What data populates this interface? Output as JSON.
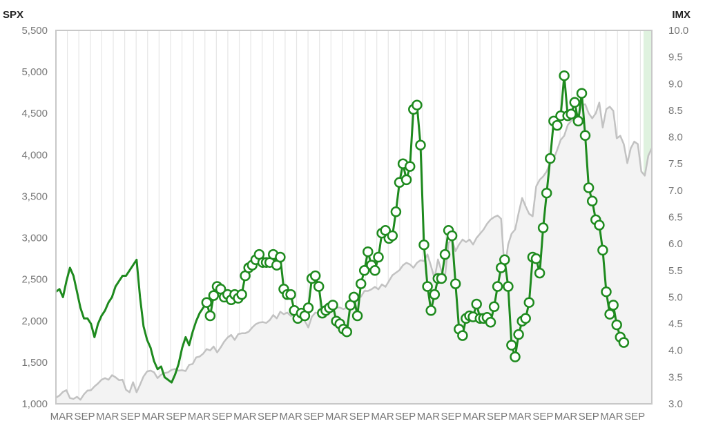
{
  "chart_data": {
    "type": "line",
    "title": "",
    "left_axis": {
      "label": "SPX",
      "ylim": [
        1000,
        5500
      ],
      "ticks": [
        1000,
        1500,
        2000,
        2500,
        3000,
        3500,
        4000,
        4500,
        5000,
        5500
      ],
      "tick_labels": [
        "1,000",
        "1,500",
        "2,000",
        "2,500",
        "3,000",
        "3,500",
        "4,000",
        "4,500",
        "5,000",
        "5,500"
      ]
    },
    "right_axis": {
      "label": "IMX",
      "ylim": [
        3.0,
        10.0
      ],
      "ticks": [
        3.0,
        3.5,
        4.0,
        4.5,
        5.0,
        5.5,
        6.0,
        6.5,
        7.0,
        7.5,
        8.0,
        8.5,
        9.0,
        9.5,
        10.0
      ],
      "tick_labels": [
        "3.0",
        "3.5",
        "4.0",
        "4.5",
        "5.0",
        "5.5",
        "6.0",
        "6.5",
        "7.0",
        "7.5",
        "8.0",
        "8.5",
        "9.0",
        "9.5",
        "10.0"
      ]
    },
    "x_tick_labels": [
      "MAR",
      "SEP",
      "MAR",
      "SEP",
      "MAR",
      "SEP",
      "MAR",
      "SEP",
      "MAR",
      "SEP",
      "MAR",
      "SEP",
      "MAR",
      "SEP",
      "MAR",
      "SEP",
      "MAR",
      "SEP",
      "MAR",
      "SEP",
      "MAR",
      "SEP",
      "MAR",
      "SEP",
      "MAR",
      "SEP"
    ],
    "grid": "vertical",
    "colors": {
      "spx_line": "#c2c2c2",
      "spx_fill": "#f3f3f3",
      "imx_line": "#1e8a1e",
      "marker_fill": "#ffffff",
      "gridline": "#e6e6e6",
      "axis": "#c8c8c8",
      "highlight": "#dff2df"
    },
    "series": [
      {
        "name": "SPX",
        "axis": "left",
        "values": [
          1075,
          1100,
          1145,
          1165,
          1070,
          1060,
          1085,
          1050,
          1115,
          1160,
          1165,
          1210,
          1245,
          1290,
          1310,
          1290,
          1345,
          1320,
          1285,
          1290,
          1170,
          1140,
          1260,
          1140,
          1230,
          1330,
          1390,
          1400,
          1380,
          1310,
          1350,
          1370,
          1380,
          1410,
          1420,
          1400,
          1405,
          1395,
          1470,
          1480,
          1560,
          1570,
          1605,
          1660,
          1645,
          1690,
          1620,
          1680,
          1750,
          1800,
          1830,
          1770,
          1840,
          1850,
          1850,
          1870,
          1920,
          1960,
          1980,
          1985,
          1975,
          2010,
          2070,
          2030,
          2110,
          2080,
          2100,
          2060,
          2070,
          1990,
          2050,
          2000,
          1920,
          2050,
          2100,
          2090,
          2160,
          2170,
          2150,
          2170,
          2160,
          2160,
          2140,
          2160,
          2200,
          2240,
          2270,
          2290,
          2360,
          2360,
          2380,
          2410,
          2380,
          2440,
          2410,
          2480,
          2550,
          2580,
          2610,
          2670,
          2700,
          2680,
          2640,
          2700,
          2730,
          2720,
          2800,
          2660,
          2510,
          2740,
          2600,
          2540,
          2940,
          2980,
          2840,
          2920,
          2980,
          2950,
          2980,
          2920,
          3000,
          3050,
          3100,
          3170,
          3220,
          3250,
          3270,
          3230,
          2610,
          2920,
          3050,
          3100,
          3300,
          3480,
          3380,
          3290,
          3260,
          3620,
          3700,
          3740,
          3800,
          3910,
          3950,
          4060,
          4180,
          4230,
          4360,
          4410,
          4440,
          4440,
          4600,
          4610,
          4500,
          4440,
          4500,
          4630,
          4330,
          4550,
          4580,
          4530,
          4200,
          4230,
          4130,
          3900,
          4080,
          4160,
          4130,
          3800,
          3750,
          3990,
          4080
        ]
      },
      {
        "name": "IMX",
        "axis": "right",
        "points": [
          {
            "i": 0,
            "v": 5.1,
            "m": false
          },
          {
            "i": 1,
            "v": 5.15,
            "m": false
          },
          {
            "i": 2,
            "v": 5.0,
            "m": false
          },
          {
            "i": 3,
            "v": 5.3,
            "m": false
          },
          {
            "i": 4,
            "v": 5.55,
            "m": false
          },
          {
            "i": 5,
            "v": 5.4,
            "m": false
          },
          {
            "i": 6,
            "v": 5.1,
            "m": false
          },
          {
            "i": 7,
            "v": 4.8,
            "m": false
          },
          {
            "i": 8,
            "v": 4.6,
            "m": false
          },
          {
            "i": 9,
            "v": 4.6,
            "m": false
          },
          {
            "i": 10,
            "v": 4.5,
            "m": false
          },
          {
            "i": 11,
            "v": 4.25,
            "m": false
          },
          {
            "i": 12,
            "v": 4.5,
            "m": false
          },
          {
            "i": 13,
            "v": 4.65,
            "m": false
          },
          {
            "i": 14,
            "v": 4.75,
            "m": false
          },
          {
            "i": 15,
            "v": 4.9,
            "m": false
          },
          {
            "i": 16,
            "v": 5.0,
            "m": false
          },
          {
            "i": 17,
            "v": 5.2,
            "m": false
          },
          {
            "i": 18,
            "v": 5.3,
            "m": false
          },
          {
            "i": 19,
            "v": 5.4,
            "m": false
          },
          {
            "i": 20,
            "v": 5.4,
            "m": false
          },
          {
            "i": 21,
            "v": 5.5,
            "m": false
          },
          {
            "i": 22,
            "v": 5.6,
            "m": false
          },
          {
            "i": 23,
            "v": 5.7,
            "m": false
          },
          {
            "i": 24,
            "v": 5.0,
            "m": false
          },
          {
            "i": 25,
            "v": 4.45,
            "m": false
          },
          {
            "i": 26,
            "v": 4.2,
            "m": false
          },
          {
            "i": 27,
            "v": 4.05,
            "m": false
          },
          {
            "i": 28,
            "v": 3.8,
            "m": false
          },
          {
            "i": 29,
            "v": 3.65,
            "m": false
          },
          {
            "i": 30,
            "v": 3.7,
            "m": false
          },
          {
            "i": 31,
            "v": 3.5,
            "m": false
          },
          {
            "i": 32,
            "v": 3.45,
            "m": false
          },
          {
            "i": 33,
            "v": 3.4,
            "m": false
          },
          {
            "i": 34,
            "v": 3.55,
            "m": false
          },
          {
            "i": 35,
            "v": 3.75,
            "m": false
          },
          {
            "i": 36,
            "v": 4.05,
            "m": false
          },
          {
            "i": 37,
            "v": 4.25,
            "m": false
          },
          {
            "i": 38,
            "v": 4.1,
            "m": false
          },
          {
            "i": 39,
            "v": 4.35,
            "m": false
          },
          {
            "i": 40,
            "v": 4.55,
            "m": false
          },
          {
            "i": 41,
            "v": 4.7,
            "m": false
          },
          {
            "i": 42,
            "v": 4.8,
            "m": false
          },
          {
            "i": 43,
            "v": 4.9,
            "m": true
          },
          {
            "i": 44,
            "v": 4.65,
            "m": true
          },
          {
            "i": 45,
            "v": 5.03,
            "m": true
          },
          {
            "i": 46,
            "v": 5.2,
            "m": true
          },
          {
            "i": 47,
            "v": 5.15,
            "m": true
          },
          {
            "i": 48,
            "v": 5.0,
            "m": true
          },
          {
            "i": 49,
            "v": 5.05,
            "m": true
          },
          {
            "i": 50,
            "v": 4.95,
            "m": true
          },
          {
            "i": 51,
            "v": 5.05,
            "m": true
          },
          {
            "i": 52,
            "v": 4.98,
            "m": true
          },
          {
            "i": 53,
            "v": 5.05,
            "m": true
          },
          {
            "i": 54,
            "v": 5.4,
            "m": true
          },
          {
            "i": 55,
            "v": 5.55,
            "m": true
          },
          {
            "i": 56,
            "v": 5.6,
            "m": true
          },
          {
            "i": 57,
            "v": 5.7,
            "m": true
          },
          {
            "i": 58,
            "v": 5.8,
            "m": true
          },
          {
            "i": 59,
            "v": 5.65,
            "m": true
          },
          {
            "i": 60,
            "v": 5.65,
            "m": true
          },
          {
            "i": 61,
            "v": 5.65,
            "m": true
          },
          {
            "i": 62,
            "v": 5.8,
            "m": true
          },
          {
            "i": 63,
            "v": 5.6,
            "m": true
          },
          {
            "i": 64,
            "v": 5.75,
            "m": true
          },
          {
            "i": 65,
            "v": 5.15,
            "m": true
          },
          {
            "i": 66,
            "v": 5.05,
            "m": true
          },
          {
            "i": 67,
            "v": 5.05,
            "m": true
          },
          {
            "i": 68,
            "v": 4.75,
            "m": true
          },
          {
            "i": 69,
            "v": 4.6,
            "m": true
          },
          {
            "i": 70,
            "v": 4.7,
            "m": true
          },
          {
            "i": 71,
            "v": 4.65,
            "m": true
          },
          {
            "i": 72,
            "v": 4.8,
            "m": true
          },
          {
            "i": 73,
            "v": 5.35,
            "m": true
          },
          {
            "i": 74,
            "v": 5.4,
            "m": true
          },
          {
            "i": 75,
            "v": 5.2,
            "m": true
          },
          {
            "i": 76,
            "v": 4.7,
            "m": true
          },
          {
            "i": 77,
            "v": 4.75,
            "m": true
          },
          {
            "i": 78,
            "v": 4.8,
            "m": true
          },
          {
            "i": 79,
            "v": 4.85,
            "m": true
          },
          {
            "i": 80,
            "v": 4.55,
            "m": true
          },
          {
            "i": 81,
            "v": 4.5,
            "m": true
          },
          {
            "i": 82,
            "v": 4.4,
            "m": true
          },
          {
            "i": 83,
            "v": 4.35,
            "m": true
          },
          {
            "i": 84,
            "v": 4.85,
            "m": true
          },
          {
            "i": 85,
            "v": 5.0,
            "m": true
          },
          {
            "i": 86,
            "v": 4.65,
            "m": true
          },
          {
            "i": 87,
            "v": 5.25,
            "m": true
          },
          {
            "i": 88,
            "v": 5.5,
            "m": true
          },
          {
            "i": 89,
            "v": 5.85,
            "m": true
          },
          {
            "i": 90,
            "v": 5.6,
            "m": true
          },
          {
            "i": 91,
            "v": 5.5,
            "m": true
          },
          {
            "i": 92,
            "v": 5.75,
            "m": true
          },
          {
            "i": 93,
            "v": 6.2,
            "m": true
          },
          {
            "i": 94,
            "v": 6.25,
            "m": true
          },
          {
            "i": 95,
            "v": 6.1,
            "m": true
          },
          {
            "i": 96,
            "v": 6.15,
            "m": true
          },
          {
            "i": 97,
            "v": 6.6,
            "m": true
          },
          {
            "i": 98,
            "v": 7.15,
            "m": true
          },
          {
            "i": 99,
            "v": 7.5,
            "m": true
          },
          {
            "i": 100,
            "v": 7.2,
            "m": true
          },
          {
            "i": 101,
            "v": 7.45,
            "m": true
          },
          {
            "i": 102,
            "v": 8.52,
            "m": true
          },
          {
            "i": 103,
            "v": 8.6,
            "m": true
          },
          {
            "i": 104,
            "v": 7.85,
            "m": true
          },
          {
            "i": 105,
            "v": 5.98,
            "m": true
          },
          {
            "i": 106,
            "v": 5.2,
            "m": true
          },
          {
            "i": 107,
            "v": 4.75,
            "m": true
          },
          {
            "i": 108,
            "v": 5.05,
            "m": true
          },
          {
            "i": 109,
            "v": 5.35,
            "m": true
          },
          {
            "i": 110,
            "v": 5.35,
            "m": true
          },
          {
            "i": 111,
            "v": 5.8,
            "m": true
          },
          {
            "i": 112,
            "v": 6.25,
            "m": true
          },
          {
            "i": 113,
            "v": 6.15,
            "m": true
          },
          {
            "i": 114,
            "v": 5.25,
            "m": true
          },
          {
            "i": 115,
            "v": 4.4,
            "m": true
          },
          {
            "i": 116,
            "v": 4.28,
            "m": true
          },
          {
            "i": 117,
            "v": 4.6,
            "m": true
          },
          {
            "i": 118,
            "v": 4.65,
            "m": true
          },
          {
            "i": 119,
            "v": 4.63,
            "m": true
          },
          {
            "i": 120,
            "v": 4.87,
            "m": true
          },
          {
            "i": 121,
            "v": 4.6,
            "m": true
          },
          {
            "i": 122,
            "v": 4.6,
            "m": true
          },
          {
            "i": 123,
            "v": 4.62,
            "m": true
          },
          {
            "i": 124,
            "v": 4.53,
            "m": true
          },
          {
            "i": 125,
            "v": 4.82,
            "m": true
          },
          {
            "i": 126,
            "v": 5.2,
            "m": true
          },
          {
            "i": 127,
            "v": 5.55,
            "m": true
          },
          {
            "i": 128,
            "v": 5.7,
            "m": true
          },
          {
            "i": 129,
            "v": 5.2,
            "m": true
          },
          {
            "i": 130,
            "v": 4.1,
            "m": true
          },
          {
            "i": 131,
            "v": 3.88,
            "m": true
          },
          {
            "i": 132,
            "v": 4.3,
            "m": true
          },
          {
            "i": 133,
            "v": 4.55,
            "m": true
          },
          {
            "i": 134,
            "v": 4.6,
            "m": true
          },
          {
            "i": 135,
            "v": 4.9,
            "m": true
          },
          {
            "i": 136,
            "v": 5.75,
            "m": true
          },
          {
            "i": 137,
            "v": 5.72,
            "m": true
          },
          {
            "i": 138,
            "v": 5.45,
            "m": true
          },
          {
            "i": 139,
            "v": 6.3,
            "m": true
          },
          {
            "i": 140,
            "v": 6.95,
            "m": true
          },
          {
            "i": 141,
            "v": 7.6,
            "m": true
          },
          {
            "i": 142,
            "v": 8.3,
            "m": true
          },
          {
            "i": 143,
            "v": 8.22,
            "m": true
          },
          {
            "i": 144,
            "v": 8.4,
            "m": true
          },
          {
            "i": 145,
            "v": 9.15,
            "m": true
          },
          {
            "i": 146,
            "v": 8.4,
            "m": true
          },
          {
            "i": 147,
            "v": 8.43,
            "m": true
          },
          {
            "i": 148,
            "v": 8.65,
            "m": true
          },
          {
            "i": 149,
            "v": 8.3,
            "m": true
          },
          {
            "i": 150,
            "v": 8.82,
            "m": true
          },
          {
            "i": 151,
            "v": 8.03,
            "m": true
          },
          {
            "i": 152,
            "v": 7.05,
            "m": true
          },
          {
            "i": 153,
            "v": 6.8,
            "m": true
          },
          {
            "i": 154,
            "v": 6.45,
            "m": true
          },
          {
            "i": 155,
            "v": 6.35,
            "m": true
          },
          {
            "i": 156,
            "v": 5.88,
            "m": true
          },
          {
            "i": 157,
            "v": 5.1,
            "m": true
          },
          {
            "i": 158,
            "v": 4.68,
            "m": true
          },
          {
            "i": 159,
            "v": 4.85,
            "m": true
          },
          {
            "i": 160,
            "v": 4.48,
            "m": true
          },
          {
            "i": 161,
            "v": 4.25,
            "m": true
          },
          {
            "i": 162,
            "v": 4.15,
            "m": true
          }
        ]
      }
    ]
  }
}
